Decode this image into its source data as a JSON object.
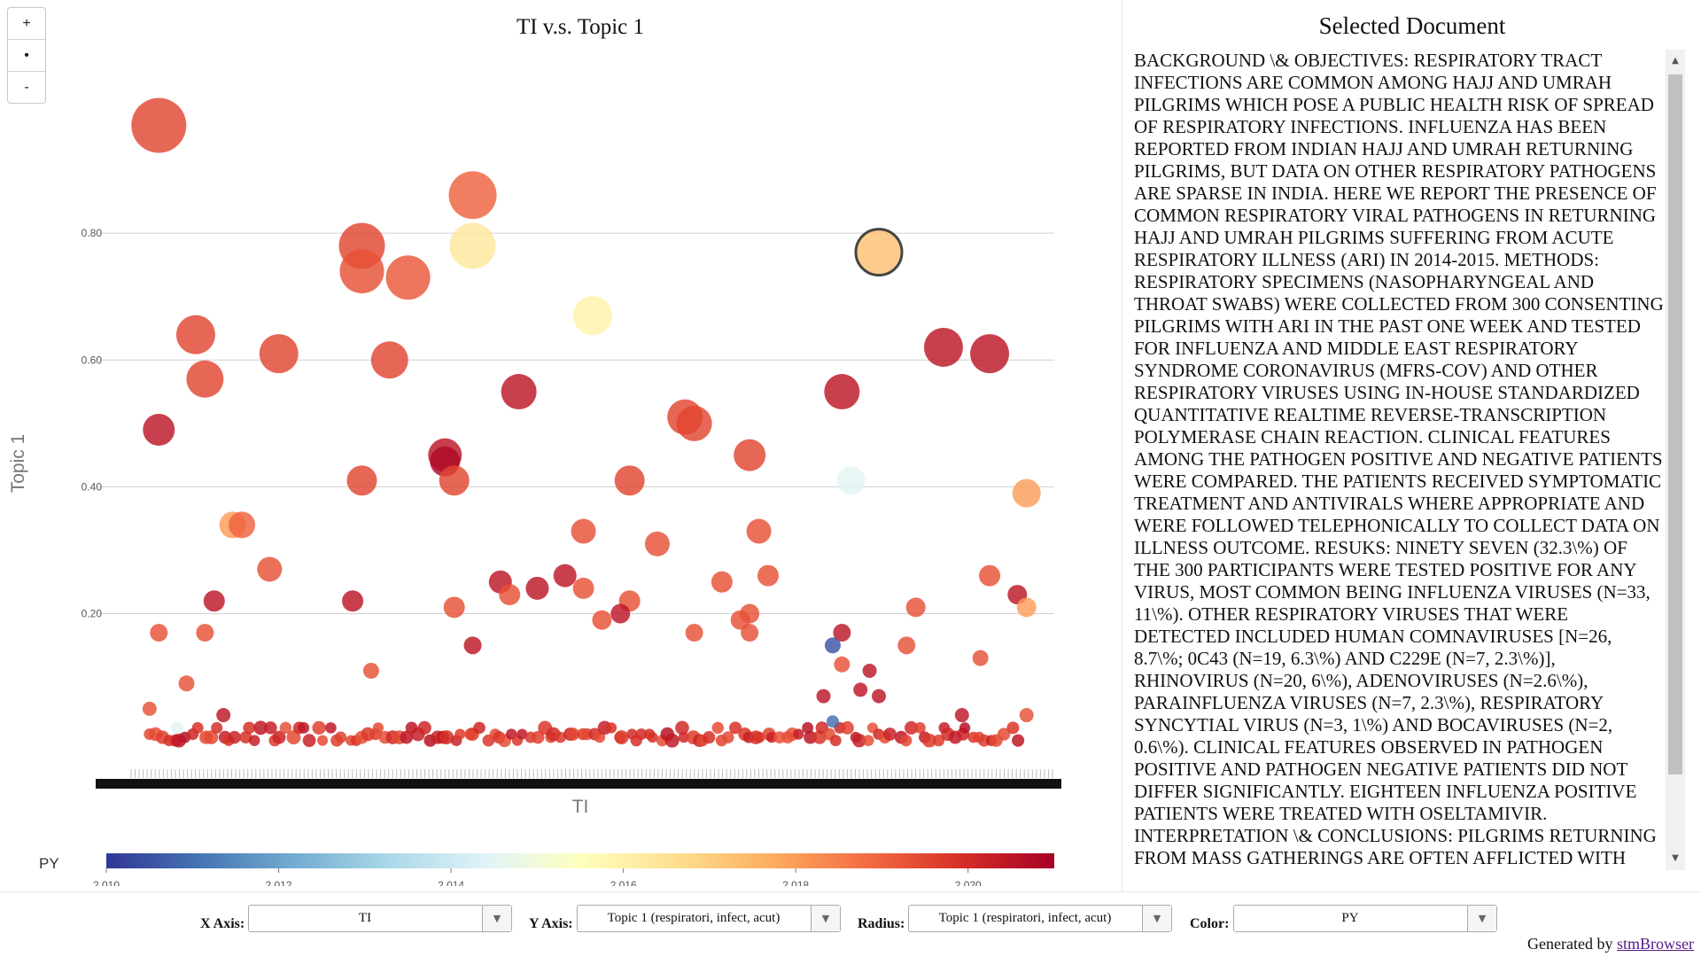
{
  "zoom_controls": {
    "zoom_in": "+",
    "reset": "•",
    "zoom_out": "-"
  },
  "chart_data": {
    "type": "scatter",
    "title": "TI v.s. Topic 1",
    "xlabel": "TI",
    "ylabel": "Topic 1",
    "y_ticks": [
      "0.20",
      "0.40",
      "0.60",
      "0.80"
    ],
    "y_tick_values": [
      0.2,
      0.4,
      0.6,
      0.8
    ],
    "ylim": [
      -0.02,
      1.0
    ],
    "grid": true,
    "color_variable": "PY",
    "color_scale": [
      "#313695",
      "#4575b4",
      "#74add1",
      "#abd9e9",
      "#e0f3f8",
      "#ffffbf",
      "#fee090",
      "#fdae61",
      "#f46d43",
      "#d73027",
      "#a50026"
    ],
    "color_ticks": [
      "2,010",
      "2,012",
      "2,014",
      "2,016",
      "2,018",
      "2,020"
    ],
    "color_tick_values": [
      2010,
      2012,
      2014,
      2016,
      2018,
      2020
    ],
    "color_range": [
      2010,
      2021
    ],
    "points": [
      {
        "x": 0.03,
        "y": 0.97,
        "r": 31,
        "py": 2019.5
      },
      {
        "x": 0.37,
        "y": 0.86,
        "r": 27,
        "py": 2019.0
      },
      {
        "x": 0.25,
        "y": 0.78,
        "r": 26,
        "py": 2019.5
      },
      {
        "x": 0.25,
        "y": 0.74,
        "r": 25,
        "py": 2019.3
      },
      {
        "x": 0.3,
        "y": 0.73,
        "r": 25,
        "py": 2019.2
      },
      {
        "x": 0.37,
        "y": 0.78,
        "r": 26,
        "py": 2016.3
      },
      {
        "x": 0.81,
        "y": 0.77,
        "r": 26,
        "py": 2017.3
      },
      {
        "x": 0.5,
        "y": 0.67,
        "r": 22,
        "py": 2016.0
      },
      {
        "x": 0.07,
        "y": 0.64,
        "r": 22,
        "py": 2019.5
      },
      {
        "x": 0.08,
        "y": 0.57,
        "r": 21,
        "py": 2019.5
      },
      {
        "x": 0.16,
        "y": 0.61,
        "r": 22,
        "py": 2019.5
      },
      {
        "x": 0.28,
        "y": 0.6,
        "r": 21,
        "py": 2019.5
      },
      {
        "x": 0.42,
        "y": 0.55,
        "r": 20,
        "py": 2020.5
      },
      {
        "x": 0.88,
        "y": 0.62,
        "r": 22,
        "py": 2020.5
      },
      {
        "x": 0.93,
        "y": 0.61,
        "r": 22,
        "py": 2020.5
      },
      {
        "x": 0.77,
        "y": 0.55,
        "r": 20,
        "py": 2020.5
      },
      {
        "x": 0.03,
        "y": 0.49,
        "r": 18,
        "py": 2020.5
      },
      {
        "x": 0.6,
        "y": 0.51,
        "r": 20,
        "py": 2019.5
      },
      {
        "x": 0.61,
        "y": 0.5,
        "r": 20,
        "py": 2019.5
      },
      {
        "x": 0.34,
        "y": 0.45,
        "r": 19,
        "py": 2020.5
      },
      {
        "x": 0.34,
        "y": 0.44,
        "r": 17,
        "py": 2020.8
      },
      {
        "x": 0.35,
        "y": 0.41,
        "r": 17,
        "py": 2019.5
      },
      {
        "x": 0.25,
        "y": 0.41,
        "r": 17,
        "py": 2019.5
      },
      {
        "x": 0.54,
        "y": 0.41,
        "r": 17,
        "py": 2019.5
      },
      {
        "x": 0.67,
        "y": 0.45,
        "r": 18,
        "py": 2019.5
      },
      {
        "x": 0.78,
        "y": 0.41,
        "r": 16,
        "py": 2014.5
      },
      {
        "x": 0.97,
        "y": 0.39,
        "r": 16,
        "py": 2018.0
      },
      {
        "x": 0.11,
        "y": 0.34,
        "r": 15,
        "py": 2018.0
      },
      {
        "x": 0.12,
        "y": 0.34,
        "r": 15,
        "py": 2019.0
      },
      {
        "x": 0.15,
        "y": 0.27,
        "r": 14,
        "py": 2019.3
      },
      {
        "x": 0.49,
        "y": 0.33,
        "r": 14,
        "py": 2019.3
      },
      {
        "x": 0.57,
        "y": 0.31,
        "r": 14,
        "py": 2019.3
      },
      {
        "x": 0.68,
        "y": 0.33,
        "r": 14,
        "py": 2019.3
      },
      {
        "x": 0.09,
        "y": 0.22,
        "r": 12,
        "py": 2020.5
      },
      {
        "x": 0.24,
        "y": 0.22,
        "r": 12,
        "py": 2020.5
      },
      {
        "x": 0.4,
        "y": 0.25,
        "r": 13,
        "py": 2020.5
      },
      {
        "x": 0.44,
        "y": 0.24,
        "r": 13,
        "py": 2020.5
      },
      {
        "x": 0.47,
        "y": 0.26,
        "r": 13,
        "py": 2020.5
      },
      {
        "x": 0.49,
        "y": 0.24,
        "r": 12,
        "py": 2019.3
      },
      {
        "x": 0.41,
        "y": 0.23,
        "r": 12,
        "py": 2019.3
      },
      {
        "x": 0.35,
        "y": 0.21,
        "r": 12,
        "py": 2019.3
      },
      {
        "x": 0.54,
        "y": 0.22,
        "r": 12,
        "py": 2019.3
      },
      {
        "x": 0.53,
        "y": 0.2,
        "r": 11,
        "py": 2020.5
      },
      {
        "x": 0.51,
        "y": 0.19,
        "r": 11,
        "py": 2019.3
      },
      {
        "x": 0.64,
        "y": 0.25,
        "r": 12,
        "py": 2019.3
      },
      {
        "x": 0.66,
        "y": 0.19,
        "r": 11,
        "py": 2019.3
      },
      {
        "x": 0.67,
        "y": 0.2,
        "r": 11,
        "py": 2019.3
      },
      {
        "x": 0.69,
        "y": 0.26,
        "r": 12,
        "py": 2019.3
      },
      {
        "x": 0.67,
        "y": 0.17,
        "r": 10,
        "py": 2019.3
      },
      {
        "x": 0.61,
        "y": 0.17,
        "r": 10,
        "py": 2019.3
      },
      {
        "x": 0.77,
        "y": 0.17,
        "r": 10,
        "py": 2020.5
      },
      {
        "x": 0.76,
        "y": 0.15,
        "r": 9,
        "py": 2010.5
      },
      {
        "x": 0.85,
        "y": 0.21,
        "r": 11,
        "py": 2019.3
      },
      {
        "x": 0.84,
        "y": 0.15,
        "r": 10,
        "py": 2019.3
      },
      {
        "x": 0.93,
        "y": 0.26,
        "r": 12,
        "py": 2019.3
      },
      {
        "x": 0.96,
        "y": 0.23,
        "r": 11,
        "py": 2020.5
      },
      {
        "x": 0.97,
        "y": 0.21,
        "r": 11,
        "py": 2018.0
      },
      {
        "x": 0.92,
        "y": 0.13,
        "r": 9,
        "py": 2019.3
      },
      {
        "x": 0.03,
        "y": 0.17,
        "r": 10,
        "py": 2019.3
      },
      {
        "x": 0.08,
        "y": 0.17,
        "r": 10,
        "py": 2019.3
      },
      {
        "x": 0.37,
        "y": 0.15,
        "r": 10,
        "py": 2020.5
      },
      {
        "x": 0.26,
        "y": 0.11,
        "r": 9,
        "py": 2019.3
      },
      {
        "x": 0.06,
        "y": 0.09,
        "r": 9,
        "py": 2019.3
      },
      {
        "x": 0.77,
        "y": 0.12,
        "r": 9,
        "py": 2019.3
      },
      {
        "x": 0.8,
        "y": 0.11,
        "r": 8,
        "py": 2020.5
      },
      {
        "x": 0.02,
        "y": 0.05,
        "r": 8,
        "py": 2019.3
      },
      {
        "x": 0.1,
        "y": 0.04,
        "r": 8,
        "py": 2020.5
      },
      {
        "x": 0.05,
        "y": 0.02,
        "r": 7,
        "py": 2014.5
      },
      {
        "x": 0.76,
        "y": 0.03,
        "r": 7,
        "py": 2011.0
      },
      {
        "x": 0.75,
        "y": 0.07,
        "r": 8,
        "py": 2020.5
      },
      {
        "x": 0.81,
        "y": 0.07,
        "r": 8,
        "py": 2020.5
      },
      {
        "x": 0.79,
        "y": 0.08,
        "r": 8,
        "py": 2020.5
      },
      {
        "x": 0.97,
        "y": 0.04,
        "r": 8,
        "py": 2019.3
      },
      {
        "x": 0.9,
        "y": 0.04,
        "r": 8,
        "py": 2020.5
      }
    ],
    "base_cluster": {
      "x_range": [
        0.02,
        0.96
      ],
      "count": 140,
      "y_levels": [
        0.0,
        0.005,
        0.01,
        0.02
      ],
      "py_values": [
        2019.3,
        2020.6
      ]
    }
  },
  "document": {
    "title": "Selected Document",
    "text": "BACKGROUND \\& OBJECTIVES: RESPIRATORY TRACT INFECTIONS ARE COMMON AMONG HAJJ AND UMRAH PILGRIMS WHICH POSE A PUBLIC HEALTH RISK OF SPREAD OF RESPIRATORY INFECTIONS. INFLUENZA HAS BEEN REPORTED FROM INDIAN HAJJ AND UMRAH RETURNING PILGRIMS, BUT DATA ON OTHER RESPIRATORY PATHOGENS ARE SPARSE IN INDIA. HERE WE REPORT THE PRESENCE OF COMMON RESPIRATORY VIRAL PATHOGENS IN RETURNING HAJJ AND UMRAH PILGRIMS SUFFERING FROM ACUTE RESPIRATORY ILLNESS (ARI) IN 2014-2015. METHODS: RESPIRATORY SPECIMENS (NASOPHARYNGEAL AND THROAT SWABS) WERE COLLECTED FROM 300 CONSENTING PILGRIMS WITH ARI IN THE PAST ONE WEEK AND TESTED FOR INFLUENZA AND MIDDLE EAST RESPIRATORY SYNDROME CORONAVIRUS (MFRS-COV) AND OTHER RESPIRATORY VIRUSES USING IN-HOUSE STANDARDIZED QUANTITATIVE REALTIME REVERSE-TRANSCRIPTION POLYMERASE CHAIN REACTION. CLINICAL FEATURES AMONG THE PATHOGEN POSITIVE AND NEGATIVE PATIENTS WERE COMPARED. THE PATIENTS RECEIVED SYMPTOMATIC TREATMENT AND ANTIVIRALS WHERE APPROPRIATE AND WERE FOLLOWED TELEPHONICALLY TO COLLECT DATA ON ILLNESS OUTCOME. RESUKS: NINETY SEVEN (32.3\\%) OF THE 300 PARTICIPANTS WERE TESTED POSITIVE FOR ANY VIRUS, MOST COMMON BEING INFLUENZA VIRUSES (N=33, 11\\%). OTHER RESPIRATORY VIRUSES THAT WERE DETECTED INCLUDED HUMAN COMNAVIRUSES [N=26, 8.7\\%; 0C43 (N=19, 6.3\\%) AND C229E (N=7, 2.3\\%)], RHINOVIRUS (N=20, 6\\%), ADENOVIRUSES (N=2.6\\%), PARAINFLUENZA VIRUSES (N=7, 2.3\\%), RESPIRATORY SYNCYTIAL VIRUS (N=3, 1\\%) AND BOCAVIRUSES (N=2, 0.6\\%). CLINICAL FEATURES OBSERVED IN PATHOGEN POSITIVE AND PATHOGEN NEGATIVE PATIENTS DID NOT DIFFER SIGNIFICANTLY. EIGHTEEN INFLUENZA POSITIVE PATIENTS WERE TREATED WITH OSELTAMIVIR. INTERPRETATION \\& CONCLUSIONS: PILGRIMS RETURNING FROM MASS GATHERINGS ARE OFTEN AFFLICTED WITH"
  },
  "controls": {
    "x_axis": {
      "label": "X Axis:",
      "value": "TI"
    },
    "y_axis": {
      "label": "Y Axis:",
      "value": "Topic 1 (respiratori, infect, acut)"
    },
    "radius": {
      "label": "Radius:",
      "value": "Topic 1 (respiratori, infect, acut)"
    },
    "color": {
      "label": "Color:",
      "value": "PY"
    }
  },
  "footer": {
    "prefix": "Generated by ",
    "link": "stmBrowser"
  }
}
